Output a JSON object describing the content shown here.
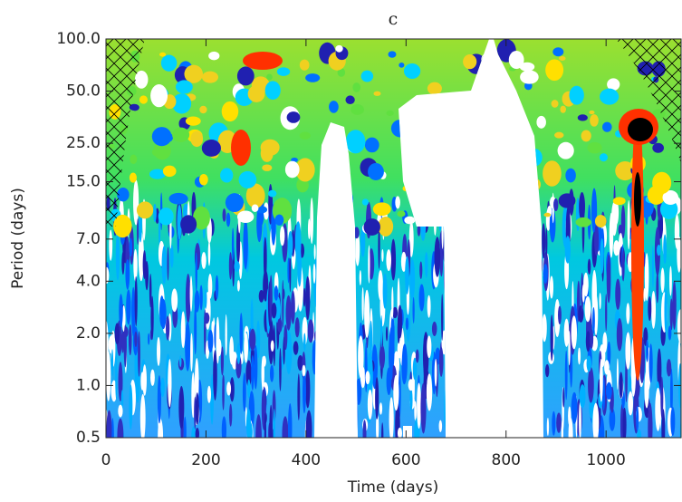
{
  "chart_data": {
    "type": "wavelet",
    "title": "c",
    "x_label": "Time (days)",
    "y_label": "Period (days)",
    "xlim": [
      0,
      1150
    ],
    "xticks": [
      0,
      200,
      400,
      600,
      800,
      1000
    ],
    "ylim": [
      0.5,
      100
    ],
    "y_log": true,
    "yticks": [
      {
        "value": 100,
        "label": "100.0"
      },
      {
        "value": 50,
        "label": "50.0"
      },
      {
        "value": 25,
        "label": "25.0"
      },
      {
        "value": 15,
        "label": "15.0"
      },
      {
        "value": 7,
        "label": "7.0"
      },
      {
        "value": 4,
        "label": "4.0"
      },
      {
        "value": 2,
        "label": "2.0"
      },
      {
        "value": 1,
        "label": "1.0"
      },
      0.5
    ]
  }
}
